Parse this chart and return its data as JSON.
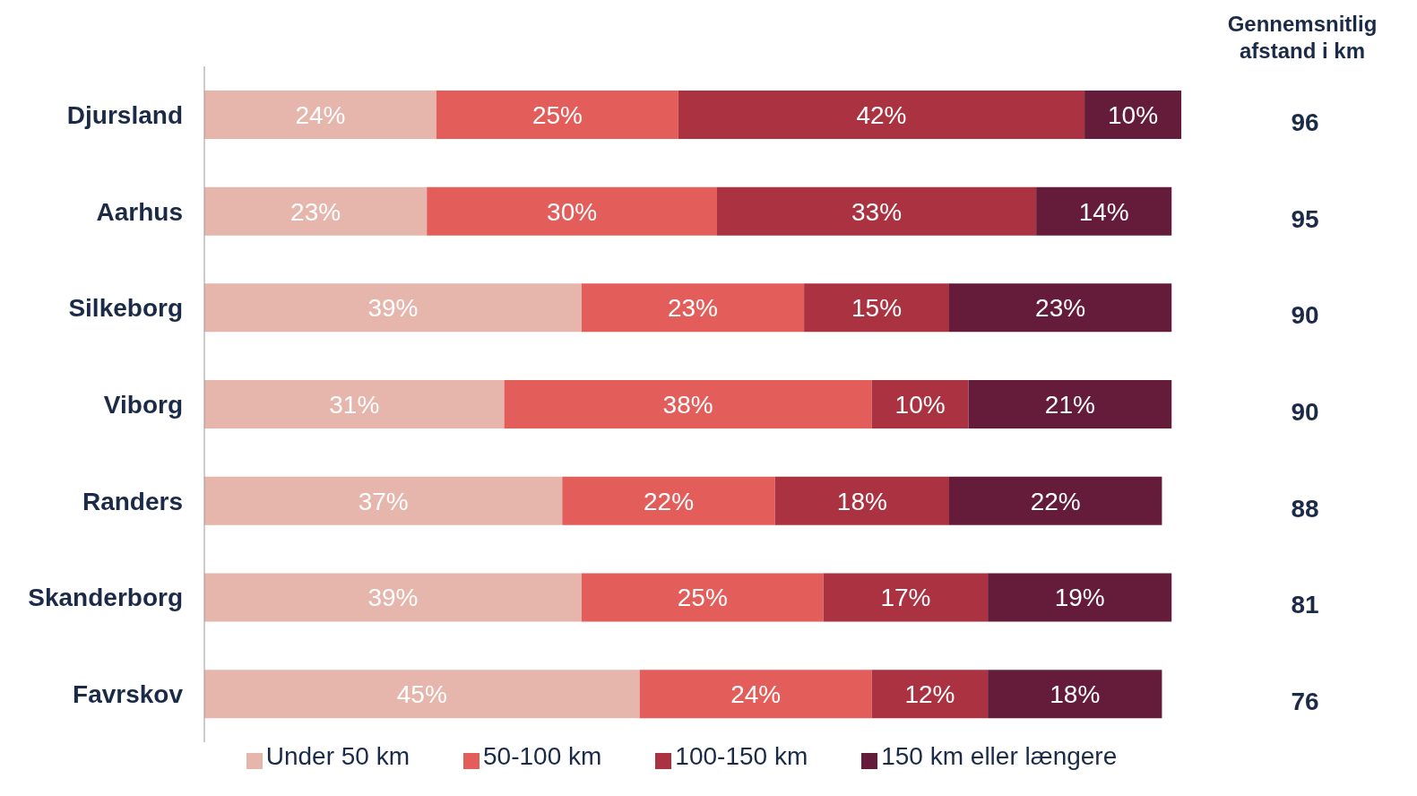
{
  "chart_data": {
    "type": "bar",
    "orientation": "horizontal",
    "stacked": true,
    "legend": "bottom",
    "categories": [
      "Djursland",
      "Aarhus",
      "Silkeborg",
      "Viborg",
      "Randers",
      "Skanderborg",
      "Favrskov"
    ],
    "series": [
      {
        "name": "Under 50 km",
        "color": "#e6b5ac",
        "values": [
          24,
          23,
          39,
          31,
          37,
          39,
          45
        ],
        "value_labels": [
          "24%",
          "23%",
          "39%",
          "31%",
          "37%",
          "39%",
          "45%"
        ]
      },
      {
        "name": "50-100 km",
        "color": "#e35d5a",
        "values": [
          25,
          30,
          23,
          38,
          22,
          25,
          24
        ],
        "value_labels": [
          "25%",
          "30%",
          "23%",
          "38%",
          "22%",
          "25%",
          "24%"
        ]
      },
      {
        "name": "100-150 km",
        "color": "#ab3241",
        "values": [
          42,
          33,
          15,
          10,
          18,
          17,
          12
        ],
        "value_labels": [
          "42%",
          "33%",
          "15%",
          "10%",
          "18%",
          "17%",
          "12%"
        ]
      },
      {
        "name": "150 km eller længere",
        "color": "#641c3a",
        "values": [
          10,
          14,
          23,
          21,
          22,
          19,
          18
        ],
        "value_labels": [
          "10%",
          "14%",
          "23%",
          "21%",
          "22%",
          "19%",
          "18%"
        ]
      }
    ],
    "annotations": [
      "Gennemsnitlig afstand i km",
      "96",
      "95",
      "90",
      "90",
      "88",
      "81",
      "76"
    ]
  }
}
